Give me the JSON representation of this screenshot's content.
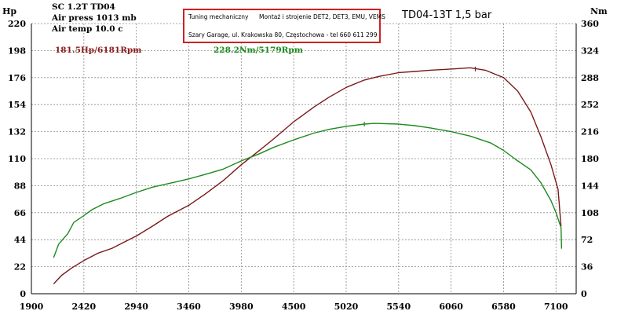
{
  "header": {
    "car": "SC 1.2T TD04",
    "air_press": "Air press 1013 mb",
    "air_temp": "Air temp 10.0 c"
  },
  "infobox": {
    "line1a": "Tuning mechaniczny",
    "line1b": "Montaż i strojenie DET2, DET3, EMU, VEMS",
    "line2": "Szary Garage, ul. Krakowska 80, Częstochowa - tel 660 611 299"
  },
  "title": "TD04-13T 1,5 bar",
  "peaks": {
    "power": "181.5Hp/6181Rpm",
    "torque": "228.2Nm/5179Rpm"
  },
  "colors": {
    "power": "#7a1a1a",
    "torque": "#1e8a1e",
    "peak_power_label": "#8b1a1a",
    "peak_torque_label": "#1a8a1a",
    "grid": "#8a8a8a",
    "infobox_border": "#cc2222"
  },
  "chart_data": {
    "type": "line",
    "title": "TD04-13T 1,5 bar",
    "xlabel": "",
    "ylabel_left": "Hp",
    "ylabel_right": "Nm",
    "xlim": [
      1900,
      7300
    ],
    "ylim_left": [
      0,
      220
    ],
    "ylim_right": [
      0,
      360
    ],
    "x_ticks": [
      1900,
      2420,
      2940,
      3460,
      3980,
      4500,
      5020,
      5540,
      6060,
      6580,
      7100
    ],
    "y_ticks_left": [
      0,
      22,
      44,
      66,
      88,
      110,
      132,
      154,
      176,
      198,
      220
    ],
    "y_ticks_right": [
      0,
      36,
      72,
      108,
      144,
      180,
      216,
      252,
      288,
      324,
      360
    ],
    "grid": true,
    "series": [
      {
        "name": "181.5Hp/6181Rpm",
        "axis": "left",
        "color": "#7a1a1a",
        "points": [
          [
            2120,
            8
          ],
          [
            2200,
            15
          ],
          [
            2300,
            21
          ],
          [
            2420,
            27
          ],
          [
            2560,
            33
          ],
          [
            2700,
            37
          ],
          [
            2820,
            42
          ],
          [
            2940,
            47
          ],
          [
            3100,
            55
          ],
          [
            3250,
            63
          ],
          [
            3460,
            72
          ],
          [
            3620,
            81
          ],
          [
            3800,
            92
          ],
          [
            3980,
            105
          ],
          [
            4150,
            116
          ],
          [
            4300,
            126
          ],
          [
            4500,
            140
          ],
          [
            4700,
            152
          ],
          [
            4850,
            160
          ],
          [
            5020,
            168
          ],
          [
            5200,
            174
          ],
          [
            5350,
            177
          ],
          [
            5540,
            180
          ],
          [
            5700,
            181
          ],
          [
            5850,
            182
          ],
          [
            6060,
            183
          ],
          [
            6250,
            184
          ],
          [
            6400,
            182
          ],
          [
            6580,
            176
          ],
          [
            6720,
            165
          ],
          [
            6850,
            148
          ],
          [
            6950,
            128
          ],
          [
            7050,
            105
          ],
          [
            7120,
            85
          ],
          [
            7150,
            55
          ]
        ]
      },
      {
        "name": "228.2Nm/5179Rpm",
        "axis": "right",
        "color": "#1e8a1e",
        "points": [
          [
            2120,
            48
          ],
          [
            2170,
            66
          ],
          [
            2260,
            80
          ],
          [
            2320,
            95
          ],
          [
            2420,
            104
          ],
          [
            2500,
            112
          ],
          [
            2620,
            120
          ],
          [
            2780,
            127
          ],
          [
            2940,
            135
          ],
          [
            3100,
            142
          ],
          [
            3300,
            148
          ],
          [
            3460,
            153
          ],
          [
            3650,
            160
          ],
          [
            3800,
            166
          ],
          [
            3980,
            177
          ],
          [
            4150,
            186
          ],
          [
            4300,
            195
          ],
          [
            4500,
            205
          ],
          [
            4700,
            214
          ],
          [
            4850,
            219
          ],
          [
            5020,
            223
          ],
          [
            5200,
            226
          ],
          [
            5300,
            227
          ],
          [
            5540,
            226
          ],
          [
            5700,
            224
          ],
          [
            5850,
            221
          ],
          [
            6060,
            216
          ],
          [
            6250,
            210
          ],
          [
            6450,
            201
          ],
          [
            6580,
            191
          ],
          [
            6700,
            179
          ],
          [
            6850,
            165
          ],
          [
            6950,
            148
          ],
          [
            7050,
            124
          ],
          [
            7100,
            108
          ],
          [
            7150,
            88
          ],
          [
            7155,
            60
          ]
        ]
      }
    ]
  }
}
